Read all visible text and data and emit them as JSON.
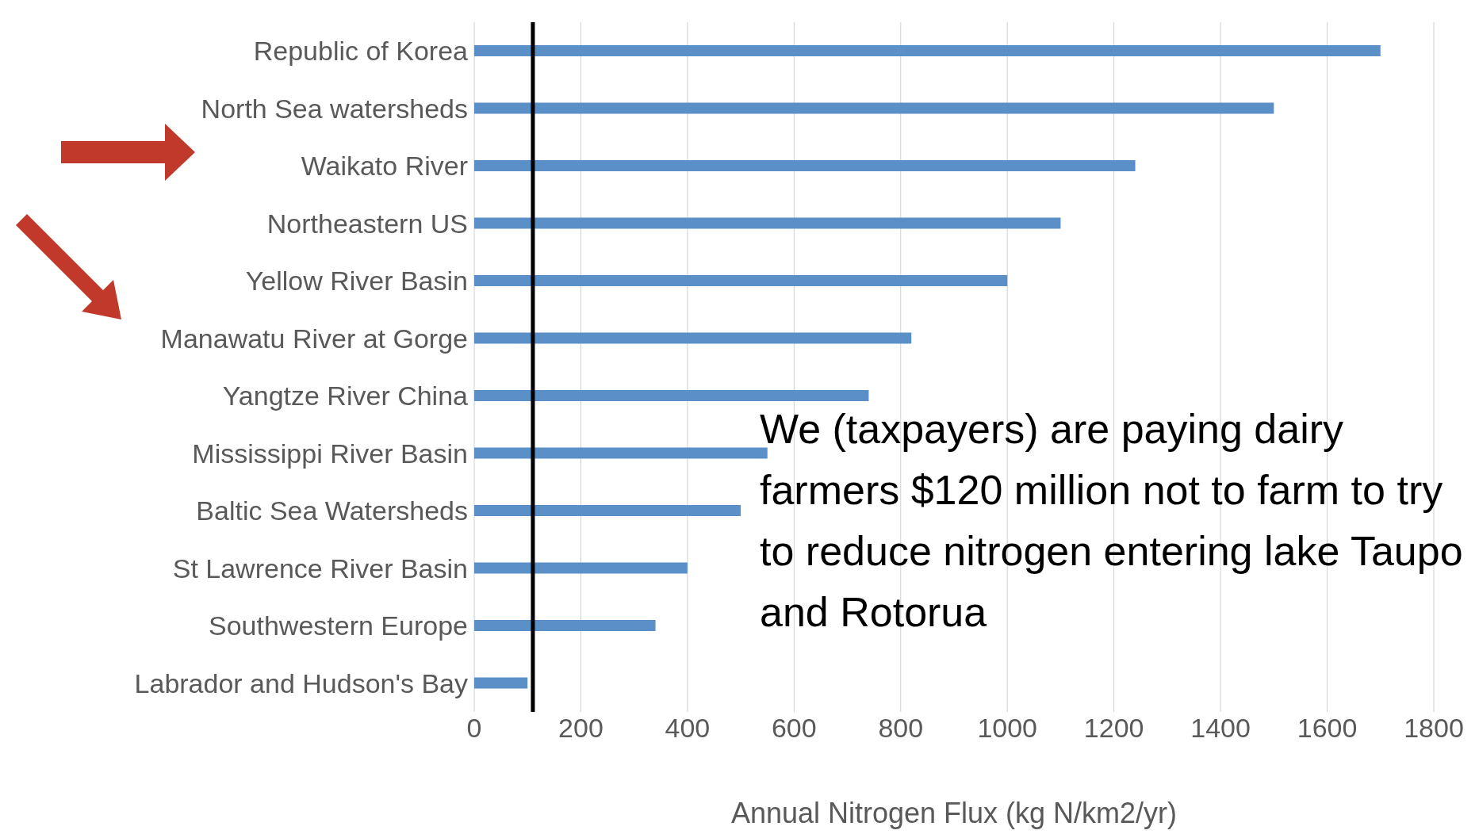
{
  "chart_data": {
    "type": "bar",
    "orientation": "horizontal",
    "xlabel": "Annual Nitrogen Flux (kg N/km2/yr)",
    "categories": [
      "Republic of Korea",
      "North Sea watersheds",
      "Waikato River",
      "Northeastern US",
      "Yellow River Basin",
      "Manawatu River at Gorge",
      "Yangtze River China",
      "Mississippi River Basin",
      "Baltic Sea Watersheds",
      "St Lawrence River Basin",
      "Southwestern Europe",
      "Labrador and Hudson's Bay"
    ],
    "values": [
      1700,
      1500,
      1240,
      1100,
      1000,
      820,
      740,
      550,
      500,
      400,
      340,
      100
    ],
    "color": "#5b8fc7",
    "xlim": [
      0,
      1800
    ],
    "xticks": [
      0,
      200,
      400,
      600,
      800,
      1000,
      1200,
      1400,
      1600,
      1800
    ],
    "grid": "x",
    "ref_lines": [
      {
        "axis": "x",
        "value": 110,
        "color": "#000000"
      }
    ],
    "annotations": [
      "We (taxpayers) are paying dairy farmers $120 million not to farm to try to reduce nitrogen entering lake Taupo and Rotorua"
    ]
  }
}
